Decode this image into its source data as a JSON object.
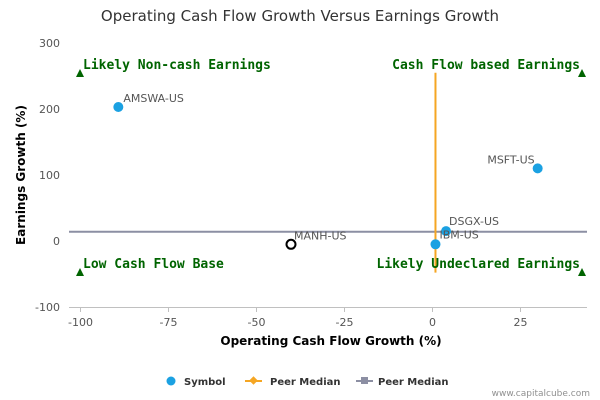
{
  "chart_data": {
    "type": "scatter",
    "title": "Operating Cash Flow Growth Versus Earnings Growth",
    "xlabel": "Operating Cash Flow Growth (%)",
    "ylabel": "Earnings Growth (%)",
    "xlim": [
      -103,
      44
    ],
    "ylim": [
      -100,
      300
    ],
    "x_ticks": [
      -100,
      -75,
      -50,
      -25,
      0,
      25
    ],
    "y_ticks": [
      -100,
      0,
      100,
      200,
      300
    ],
    "points": [
      {
        "label": "AMSWA-US",
        "x": -89,
        "y": 203,
        "style": "filled"
      },
      {
        "label": "MSFT-US",
        "x": 30,
        "y": 110,
        "style": "filled"
      },
      {
        "label": "DSGX-US",
        "x": 4,
        "y": 15,
        "style": "filled"
      },
      {
        "label": "IBM-US",
        "x": 1,
        "y": -5,
        "style": "filled"
      },
      {
        "label": "MANH-US",
        "x": -40,
        "y": -5,
        "style": "hollow"
      }
    ],
    "peer_median_x": 1,
    "peer_median_y": 14,
    "quadrant_labels": {
      "top_left": "Likely Non-cash Earnings",
      "top_right": "Cash Flow based Earnings",
      "bottom_left": "Low Cash Flow Base",
      "bottom_right": "Likely Undeclared Earnings"
    },
    "legend": {
      "position": "bottom-center",
      "items": [
        "Symbol",
        "Peer Median",
        "Peer Median"
      ]
    },
    "grid": false
  },
  "colors": {
    "point": "#1ba1e2",
    "hollow_point": "#000000",
    "peer_median_vertical": "#f5a623",
    "peer_median_horizontal": "#8c8fa3",
    "quadrant_text": "#006400",
    "marker_triangle": "#006400",
    "axis": "#c0c0c0"
  },
  "credit": "www.capitalcube.com"
}
